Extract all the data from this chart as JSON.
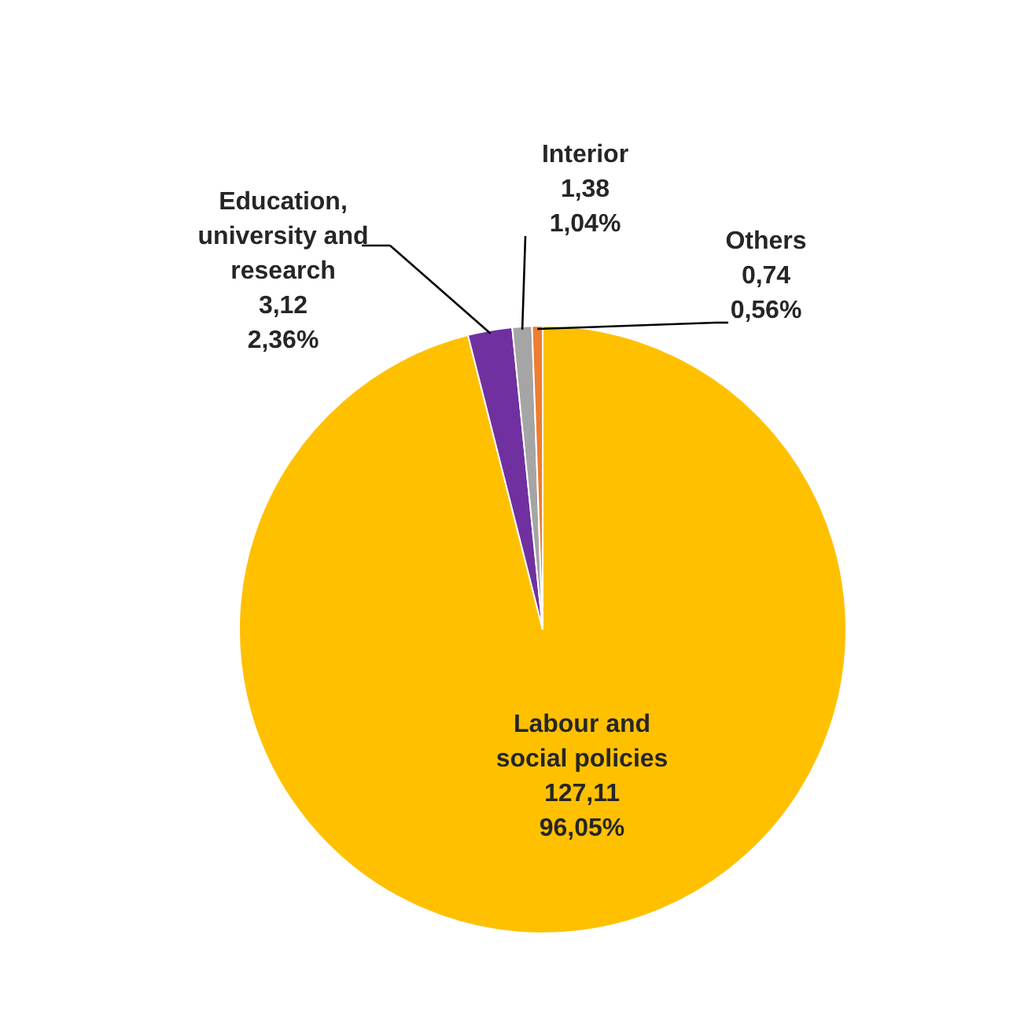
{
  "chart_data": {
    "type": "pie",
    "categories": [
      "Labour and\nsocial policies",
      "Education,\nuniversity and\nresearch",
      "Interior",
      "Others"
    ],
    "values": [
      127.11,
      3.12,
      1.38,
      0.74
    ],
    "colors": [
      "#ffc000",
      "#7030a0",
      "#a5a5a5",
      "#ed7d31"
    ],
    "value_labels": [
      "127,11\n96,05%",
      "3,12\n2,36%",
      "1,38\n1,04%",
      "0,74\n0,56%"
    ]
  }
}
